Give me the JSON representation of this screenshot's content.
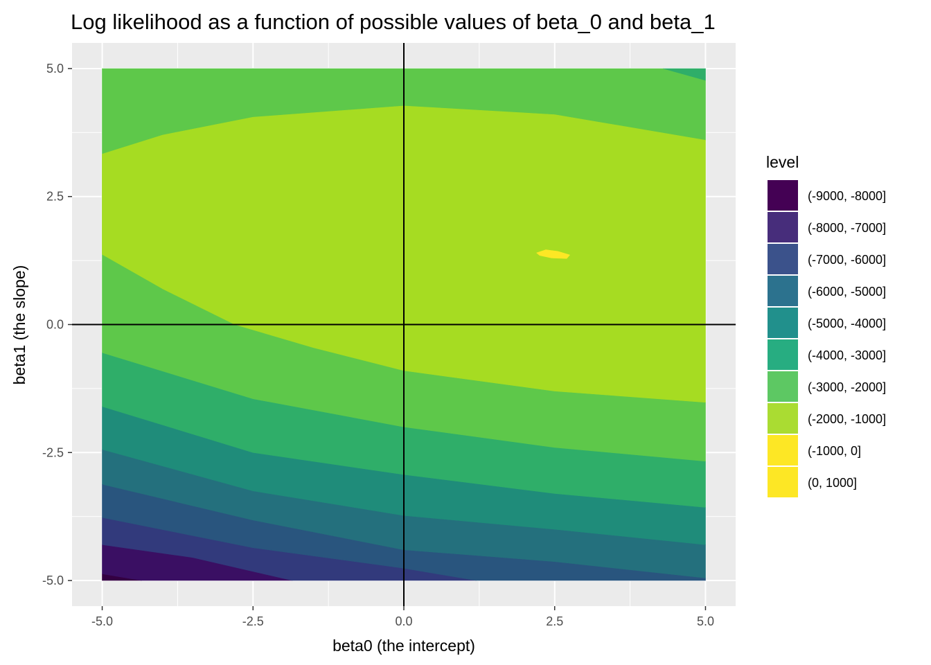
{
  "chart_data": {
    "type": "contour",
    "title": "Log likelihood as a function of possible values of beta_0 and beta_1",
    "xlabel": "beta0 (the intercept)",
    "ylabel": "beta1 (the slope)",
    "xlim": [
      -5.5,
      5.5
    ],
    "ylim": [
      -5.5,
      5.5
    ],
    "x_ticks": [
      -5.0,
      -2.5,
      0.0,
      2.5,
      5.0
    ],
    "y_ticks": [
      -5.0,
      -2.5,
      0.0,
      2.5,
      5.0
    ],
    "x_tick_labels": [
      "-5.0",
      "-2.5",
      "0.0",
      "2.5",
      "5.0"
    ],
    "y_tick_labels": [
      "-5.0",
      "-2.5",
      "0.0",
      "2.5",
      "5.0"
    ],
    "grid": true,
    "reference_lines": {
      "x": 0,
      "y": 0
    },
    "legend": {
      "title": "level",
      "placement": "right",
      "entries": [
        {
          "label": "(-9000, -8000]",
          "color": "#440154"
        },
        {
          "label": "(-8000, -7000]",
          "color": "#472D7B"
        },
        {
          "label": "(-7000, -6000]",
          "color": "#3B528B"
        },
        {
          "label": "(-6000, -5000]",
          "color": "#2C728E"
        },
        {
          "label": "(-5000, -4000]",
          "color": "#21908C"
        },
        {
          "label": "(-4000, -3000]",
          "color": "#27AD81"
        },
        {
          "label": "(-3000, -2000]",
          "color": "#5DC863"
        },
        {
          "label": "(-2000, -1000]",
          "color": "#AADC32"
        },
        {
          "label": "(-1000, 0]",
          "color": "#FDE725"
        },
        {
          "label": "(0, 1000]",
          "color": "#FDE725"
        }
      ]
    },
    "regions": [
      {
        "level": "(-9000, -8000]",
        "color": "#340042",
        "points": [
          [
            -5,
            -5
          ],
          [
            -4.35,
            -5
          ],
          [
            -5,
            -4.87
          ]
        ]
      },
      {
        "level": "(-8000, -7000]",
        "color": "#3A0F63",
        "points": [
          [
            -5,
            -4.87
          ],
          [
            -4.35,
            -5
          ],
          [
            -1.85,
            -5
          ],
          [
            -3.5,
            -4.55
          ],
          [
            -5,
            -4.3
          ]
        ]
      },
      {
        "level": "(-7000, -6000]",
        "color": "#323A7C",
        "points": [
          [
            -5,
            -4.3
          ],
          [
            -3.5,
            -4.55
          ],
          [
            -1.85,
            -5
          ],
          [
            1.2,
            -5
          ],
          [
            0,
            -4.76
          ],
          [
            -2.5,
            -4.36
          ],
          [
            -5,
            -3.77
          ]
        ]
      },
      {
        "level": "(-6000, -5000]",
        "color": "#29557E",
        "points": [
          [
            -5,
            -3.77
          ],
          [
            -2.5,
            -4.36
          ],
          [
            0,
            -4.76
          ],
          [
            1.2,
            -5
          ],
          [
            5,
            -5
          ],
          [
            5,
            -4.95
          ],
          [
            2.5,
            -4.63
          ],
          [
            0,
            -4.4
          ],
          [
            -2.5,
            -3.82
          ],
          [
            -5,
            -3.12
          ]
        ]
      },
      {
        "level": "(-5000, -4000]",
        "color": "#24707D",
        "points": [
          [
            -5,
            -3.12
          ],
          [
            -2.5,
            -3.82
          ],
          [
            0,
            -4.4
          ],
          [
            2.5,
            -4.63
          ],
          [
            5,
            -4.95
          ],
          [
            5,
            -4.3
          ],
          [
            2.5,
            -4.0
          ],
          [
            0,
            -3.73
          ],
          [
            -2.5,
            -3.25
          ],
          [
            -5,
            -2.44
          ]
        ]
      },
      {
        "level": "(-4000, -3000]",
        "color": "#1F8C7A",
        "points": [
          [
            -5,
            -2.44
          ],
          [
            -2.5,
            -3.25
          ],
          [
            0,
            -3.73
          ],
          [
            2.5,
            -4.0
          ],
          [
            5,
            -4.3
          ],
          [
            5,
            -3.57
          ],
          [
            2.5,
            -3.3
          ],
          [
            0,
            -2.93
          ],
          [
            -2.5,
            -2.5
          ],
          [
            -5,
            -1.6
          ]
        ]
      },
      {
        "level": "(-3000, -2000]",
        "color": "#2FAE69",
        "points": [
          [
            -5,
            -1.6
          ],
          [
            -2.5,
            -2.5
          ],
          [
            0,
            -2.93
          ],
          [
            2.5,
            -3.3
          ],
          [
            5,
            -3.57
          ],
          [
            5,
            -2.67
          ],
          [
            2.5,
            -2.4
          ],
          [
            0,
            -2.0
          ],
          [
            -2.5,
            -1.45
          ],
          [
            -5,
            -0.55
          ]
        ]
      },
      {
        "level": "(-2000, -1000]",
        "color": "#5EC84A",
        "points": [
          [
            -5,
            -0.55
          ],
          [
            -2.5,
            -1.45
          ],
          [
            0,
            -2.0
          ],
          [
            2.5,
            -2.4
          ],
          [
            5,
            -2.67
          ],
          [
            5,
            -1.52
          ],
          [
            2.5,
            -1.3
          ],
          [
            0,
            -0.9
          ],
          [
            -1.5,
            -0.45
          ],
          [
            -2.8,
            0
          ],
          [
            -4,
            0.7
          ],
          [
            -5,
            1.37
          ],
          [
            -5,
            3.33
          ],
          [
            -4,
            3.7
          ],
          [
            -2.5,
            4.05
          ],
          [
            0,
            4.27
          ],
          [
            2.5,
            4.1
          ],
          [
            5,
            3.6
          ],
          [
            5,
            4.77
          ],
          [
            4.3,
            5
          ],
          [
            -5,
            5
          ]
        ]
      },
      {
        "level": "(-3000, -2000]",
        "color": "#2FAE69",
        "points": [
          [
            4.3,
            5
          ],
          [
            5,
            5
          ],
          [
            5,
            4.77
          ]
        ]
      },
      {
        "level": "(-1000, 0]",
        "color": "#A6DC22",
        "points": [
          [
            -5,
            1.37
          ],
          [
            -4,
            0.7
          ],
          [
            -2.8,
            0
          ],
          [
            -1.5,
            -0.45
          ],
          [
            0,
            -0.9
          ],
          [
            2.5,
            -1.3
          ],
          [
            5,
            -1.52
          ],
          [
            5,
            3.6
          ],
          [
            2.5,
            4.1
          ],
          [
            0,
            4.27
          ],
          [
            -2.5,
            4.05
          ],
          [
            -4,
            3.7
          ],
          [
            -5,
            3.33
          ]
        ]
      },
      {
        "level": "(0, 1000]",
        "color": "#FDE725",
        "points": [
          [
            2.2,
            1.4
          ],
          [
            2.35,
            1.46
          ],
          [
            2.55,
            1.43
          ],
          [
            2.75,
            1.36
          ],
          [
            2.7,
            1.29
          ],
          [
            2.45,
            1.3
          ],
          [
            2.25,
            1.35
          ]
        ]
      }
    ]
  }
}
